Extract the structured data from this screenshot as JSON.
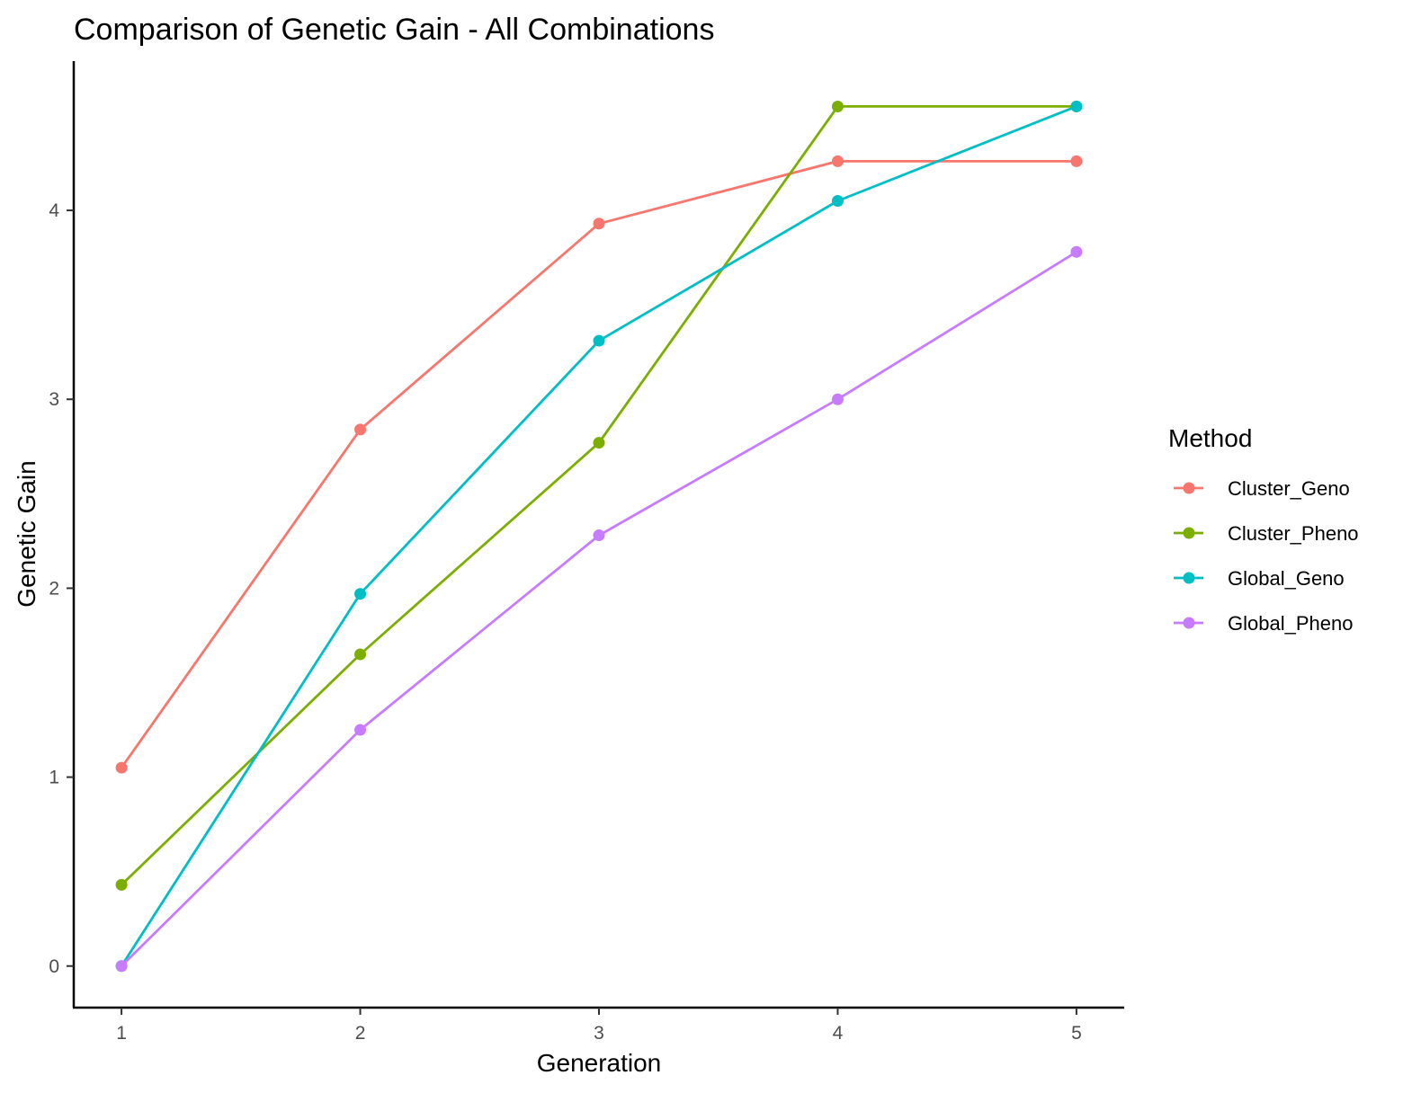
{
  "chart_data": {
    "type": "line",
    "title": "Comparison of Genetic Gain - All Combinations",
    "xlabel": "Generation",
    "ylabel": "Genetic Gain",
    "x": [
      1,
      2,
      3,
      4,
      5
    ],
    "x_ticks": [
      "1",
      "2",
      "3",
      "4",
      "5"
    ],
    "y_ticks": [
      "0",
      "1",
      "2",
      "3",
      "4"
    ],
    "xlim": [
      0.8,
      5.2
    ],
    "ylim": [
      -0.22,
      4.79
    ],
    "grid": false,
    "legend": {
      "title": "Method",
      "placement": "right"
    },
    "series": [
      {
        "name": "Cluster_Geno",
        "color": "#F8766D",
        "values": [
          1.05,
          2.84,
          3.93,
          4.26,
          4.26
        ]
      },
      {
        "name": "Cluster_Pheno",
        "color": "#7CAE00",
        "values": [
          0.43,
          1.65,
          2.77,
          4.55,
          4.55
        ]
      },
      {
        "name": "Global_Geno",
        "color": "#00BFC4",
        "values": [
          0.0,
          1.97,
          3.31,
          4.05,
          4.55
        ]
      },
      {
        "name": "Global_Pheno",
        "color": "#C77CFF",
        "values": [
          0.0,
          1.25,
          2.28,
          3.0,
          3.78
        ]
      }
    ]
  }
}
